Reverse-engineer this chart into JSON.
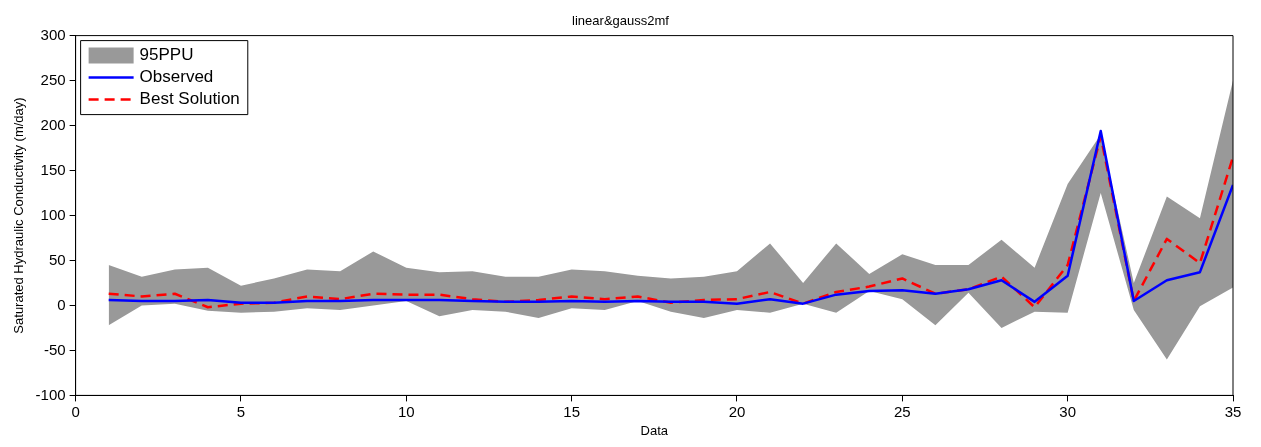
{
  "chart_data": {
    "type": "line",
    "title": "linear&gauss2mf",
    "xlabel": "Data",
    "ylabel": "Saturated Hydraulic Conductivity (m/day)",
    "x": [
      1,
      2,
      3,
      4,
      5,
      6,
      7,
      8,
      9,
      10,
      11,
      12,
      13,
      14,
      15,
      16,
      17,
      18,
      19,
      20,
      21,
      22,
      23,
      24,
      25,
      26,
      27,
      28,
      29,
      30,
      31,
      32,
      33,
      34,
      35
    ],
    "series": [
      {
        "name": "95PPU",
        "type": "area",
        "color": "#999999",
        "values": [
          null,
          null,
          null,
          null,
          null,
          null,
          null,
          null,
          null,
          null,
          null,
          null,
          null,
          null,
          null,
          null,
          null,
          null,
          null,
          null,
          null,
          null,
          null,
          null,
          null,
          null,
          null,
          null,
          null,
          null,
          null,
          null,
          null,
          null,
          null
        ],
        "lower": [
          -22,
          0,
          2,
          -6,
          -8,
          -7,
          -3,
          -5,
          0,
          5,
          -12,
          -5,
          -7,
          -14,
          -3,
          -5,
          5,
          -7,
          -14,
          -5,
          -8,
          2,
          -8,
          16,
          7,
          -22,
          14,
          -25,
          -7,
          -8,
          125,
          -5,
          -60,
          -1,
          20
        ],
        "upper": [
          45,
          32,
          40,
          42,
          22,
          30,
          40,
          38,
          60,
          42,
          37,
          38,
          32,
          32,
          40,
          38,
          33,
          30,
          32,
          38,
          69,
          25,
          69,
          35,
          57,
          45,
          45,
          73,
          42,
          135,
          190,
          25,
          121,
          97,
          250
        ]
      },
      {
        "name": "Observed",
        "type": "line",
        "color": "#0000ff",
        "line_style": "solid",
        "values": [
          6,
          5,
          5,
          6,
          3,
          3,
          5,
          5,
          6,
          6,
          6,
          5,
          4,
          4,
          5,
          4,
          5,
          4,
          4,
          2,
          7,
          2,
          12,
          16,
          17,
          13,
          18,
          28,
          4,
          33,
          194,
          5,
          28,
          37,
          134
        ]
      },
      {
        "name": "Best Solution",
        "type": "line",
        "color": "#ff0000",
        "line_style": "dashed",
        "values": [
          13,
          10,
          13,
          -2,
          2,
          3,
          10,
          7,
          13,
          12,
          12,
          7,
          4,
          6,
          10,
          7,
          10,
          3,
          6,
          7,
          15,
          2,
          15,
          21,
          30,
          13,
          18,
          32,
          -2,
          45,
          188,
          5,
          74,
          47,
          165
        ]
      }
    ],
    "xlim": [
      0,
      35
    ],
    "xticks": [
      0,
      5,
      10,
      15,
      20,
      25,
      30,
      35
    ],
    "ylim": [
      -100,
      300
    ],
    "yticks": [
      -100,
      -50,
      0,
      50,
      100,
      150,
      200,
      250,
      300
    ],
    "grid": false,
    "legend": "top left",
    "marker": "none"
  }
}
